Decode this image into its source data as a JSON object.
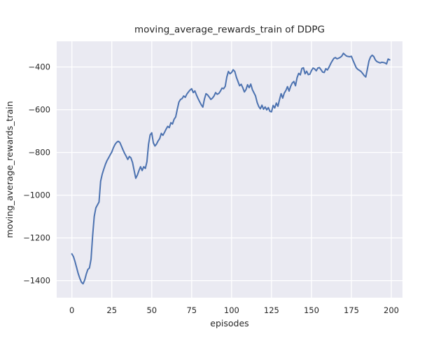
{
  "chart_data": {
    "type": "line",
    "title": "moving_average_rewards_train of DDPG",
    "xlabel": "episodes",
    "ylabel": "moving_average_rewards_train",
    "legend_visible": false,
    "grid": true,
    "xlim": [
      -9.5,
      207
    ],
    "ylim": [
      -1480,
      -280
    ],
    "x_ticks": [
      0,
      25,
      50,
      75,
      100,
      125,
      150,
      175,
      200
    ],
    "x_tick_labels": [
      "0",
      "25",
      "50",
      "75",
      "100",
      "125",
      "150",
      "175",
      "200"
    ],
    "y_ticks": [
      -400,
      -600,
      -800,
      -1000,
      -1200,
      -1400
    ],
    "y_tick_labels": [
      "−400",
      "−600",
      "−800",
      "−1000",
      "−1200",
      "−1400"
    ],
    "colors": {
      "figure_background": "#ffffff",
      "plot_background": "#eaeaf2",
      "gridline": "#ffffff",
      "line": "#4c72b0",
      "text": "#262626"
    },
    "series": [
      {
        "name": "moving_average_rewards_train",
        "x_start": 0,
        "x_step": 1,
        "y": [
          -1275,
          -1288,
          -1312,
          -1340,
          -1368,
          -1390,
          -1408,
          -1415,
          -1398,
          -1370,
          -1348,
          -1341,
          -1300,
          -1190,
          -1100,
          -1060,
          -1046,
          -1032,
          -935,
          -902,
          -878,
          -856,
          -838,
          -825,
          -811,
          -798,
          -778,
          -763,
          -753,
          -748,
          -753,
          -770,
          -788,
          -804,
          -818,
          -833,
          -819,
          -826,
          -848,
          -885,
          -921,
          -906,
          -885,
          -867,
          -885,
          -867,
          -875,
          -843,
          -762,
          -718,
          -708,
          -755,
          -770,
          -761,
          -746,
          -735,
          -711,
          -720,
          -706,
          -691,
          -678,
          -684,
          -661,
          -667,
          -645,
          -634,
          -598,
          -565,
          -552,
          -548,
          -536,
          -542,
          -527,
          -517,
          -508,
          -502,
          -520,
          -512,
          -531,
          -548,
          -563,
          -577,
          -588,
          -550,
          -525,
          -531,
          -541,
          -552,
          -546,
          -536,
          -520,
          -528,
          -524,
          -513,
          -499,
          -502,
          -491,
          -447,
          -421,
          -432,
          -426,
          -413,
          -421,
          -448,
          -468,
          -488,
          -481,
          -497,
          -517,
          -506,
          -483,
          -497,
          -480,
          -506,
          -521,
          -536,
          -566,
          -585,
          -596,
          -579,
          -598,
          -587,
          -601,
          -590,
          -608,
          -610,
          -580,
          -592,
          -569,
          -584,
          -553,
          -525,
          -546,
          -522,
          -510,
          -492,
          -513,
          -490,
          -475,
          -468,
          -488,
          -450,
          -430,
          -437,
          -407,
          -404,
          -432,
          -420,
          -436,
          -434,
          -417,
          -405,
          -409,
          -418,
          -405,
          -403,
          -413,
          -424,
          -426,
          -408,
          -414,
          -401,
          -385,
          -372,
          -360,
          -356,
          -362,
          -359,
          -355,
          -349,
          -336,
          -343,
          -349,
          -351,
          -352,
          -350,
          -369,
          -386,
          -403,
          -411,
          -416,
          -421,
          -430,
          -440,
          -447,
          -410,
          -372,
          -353,
          -345,
          -351,
          -367,
          -375,
          -378,
          -381,
          -378,
          -379,
          -381,
          -386,
          -363,
          -367
        ]
      }
    ]
  }
}
